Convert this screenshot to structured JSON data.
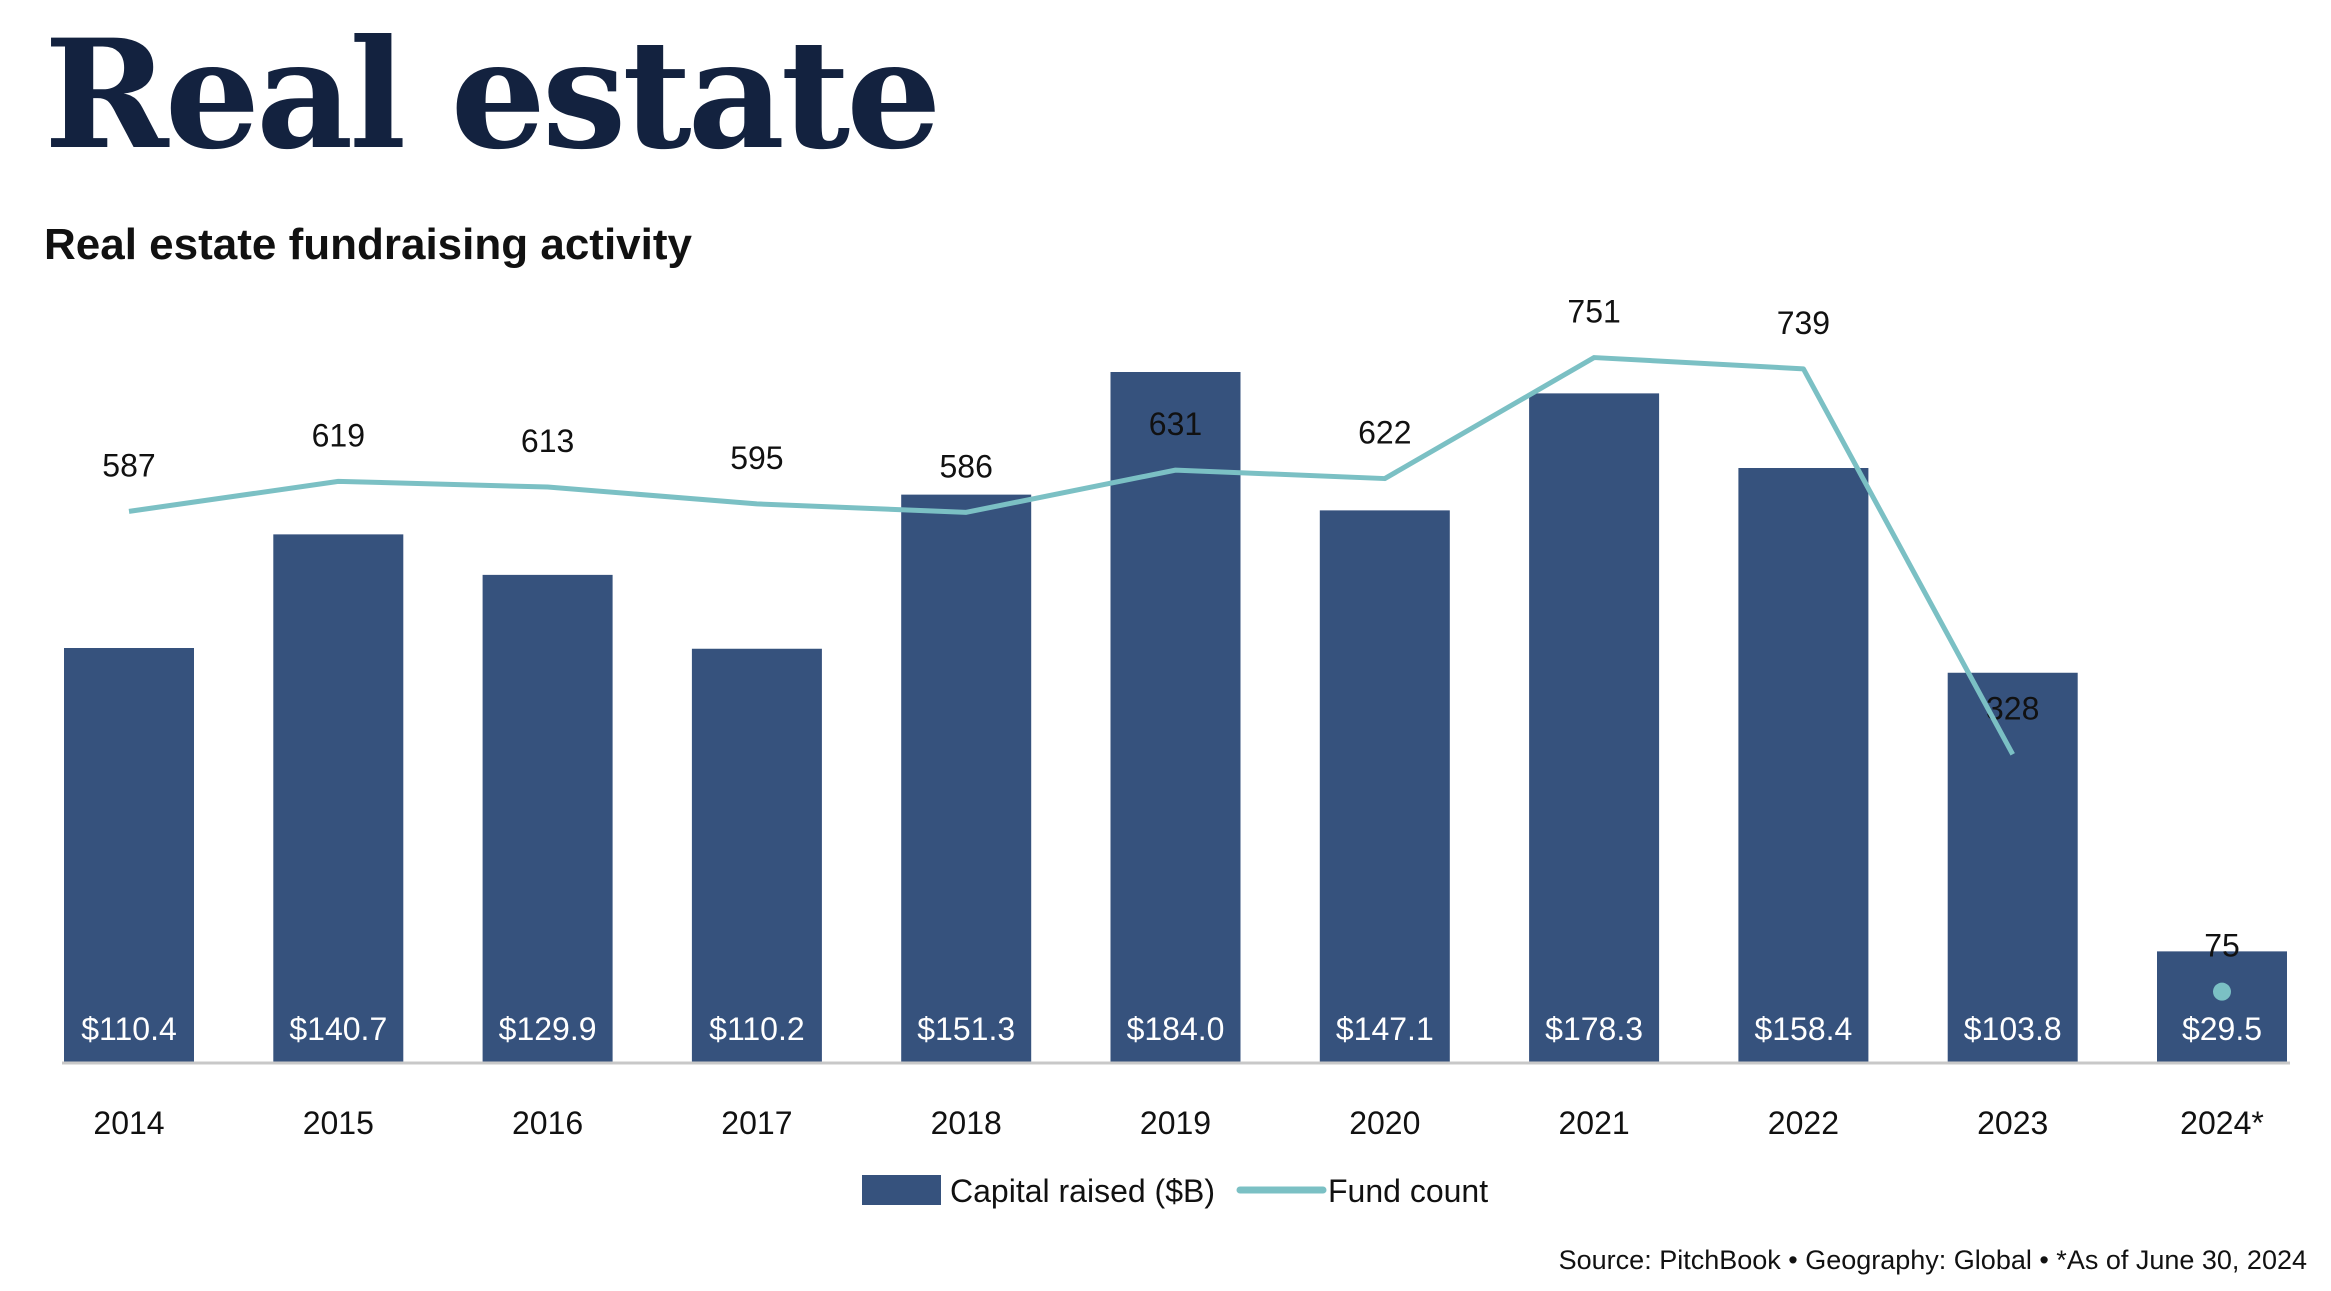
{
  "header": {
    "title": "Real estate"
  },
  "chart_data": {
    "type": "bar",
    "title": "Real estate fundraising activity",
    "categories": [
      "2014",
      "2015",
      "2016",
      "2017",
      "2018",
      "2019",
      "2020",
      "2021",
      "2022",
      "2023",
      "2024*"
    ],
    "series": [
      {
        "name": "Capital raised ($B)",
        "type": "bar",
        "color": "#36527d",
        "values": [
          110.4,
          140.7,
          129.9,
          110.2,
          151.3,
          184.0,
          147.1,
          178.3,
          158.4,
          103.8,
          29.5
        ],
        "labels": [
          "$110.4",
          "$140.7",
          "$129.9",
          "$110.2",
          "$151.3",
          "$184.0",
          "$147.1",
          "$178.3",
          "$158.4",
          "$103.8",
          "$29.5"
        ]
      },
      {
        "name": "Fund count",
        "type": "line",
        "color": "#7bc0c4",
        "values": [
          587,
          619,
          613,
          595,
          586,
          631,
          622,
          751,
          739,
          328,
          75
        ]
      }
    ],
    "legend": "bottom-center",
    "grid": false
  },
  "footer": {
    "source": "Source: PitchBook  •  Geography: Global  •  *As of June 30, 2024"
  }
}
